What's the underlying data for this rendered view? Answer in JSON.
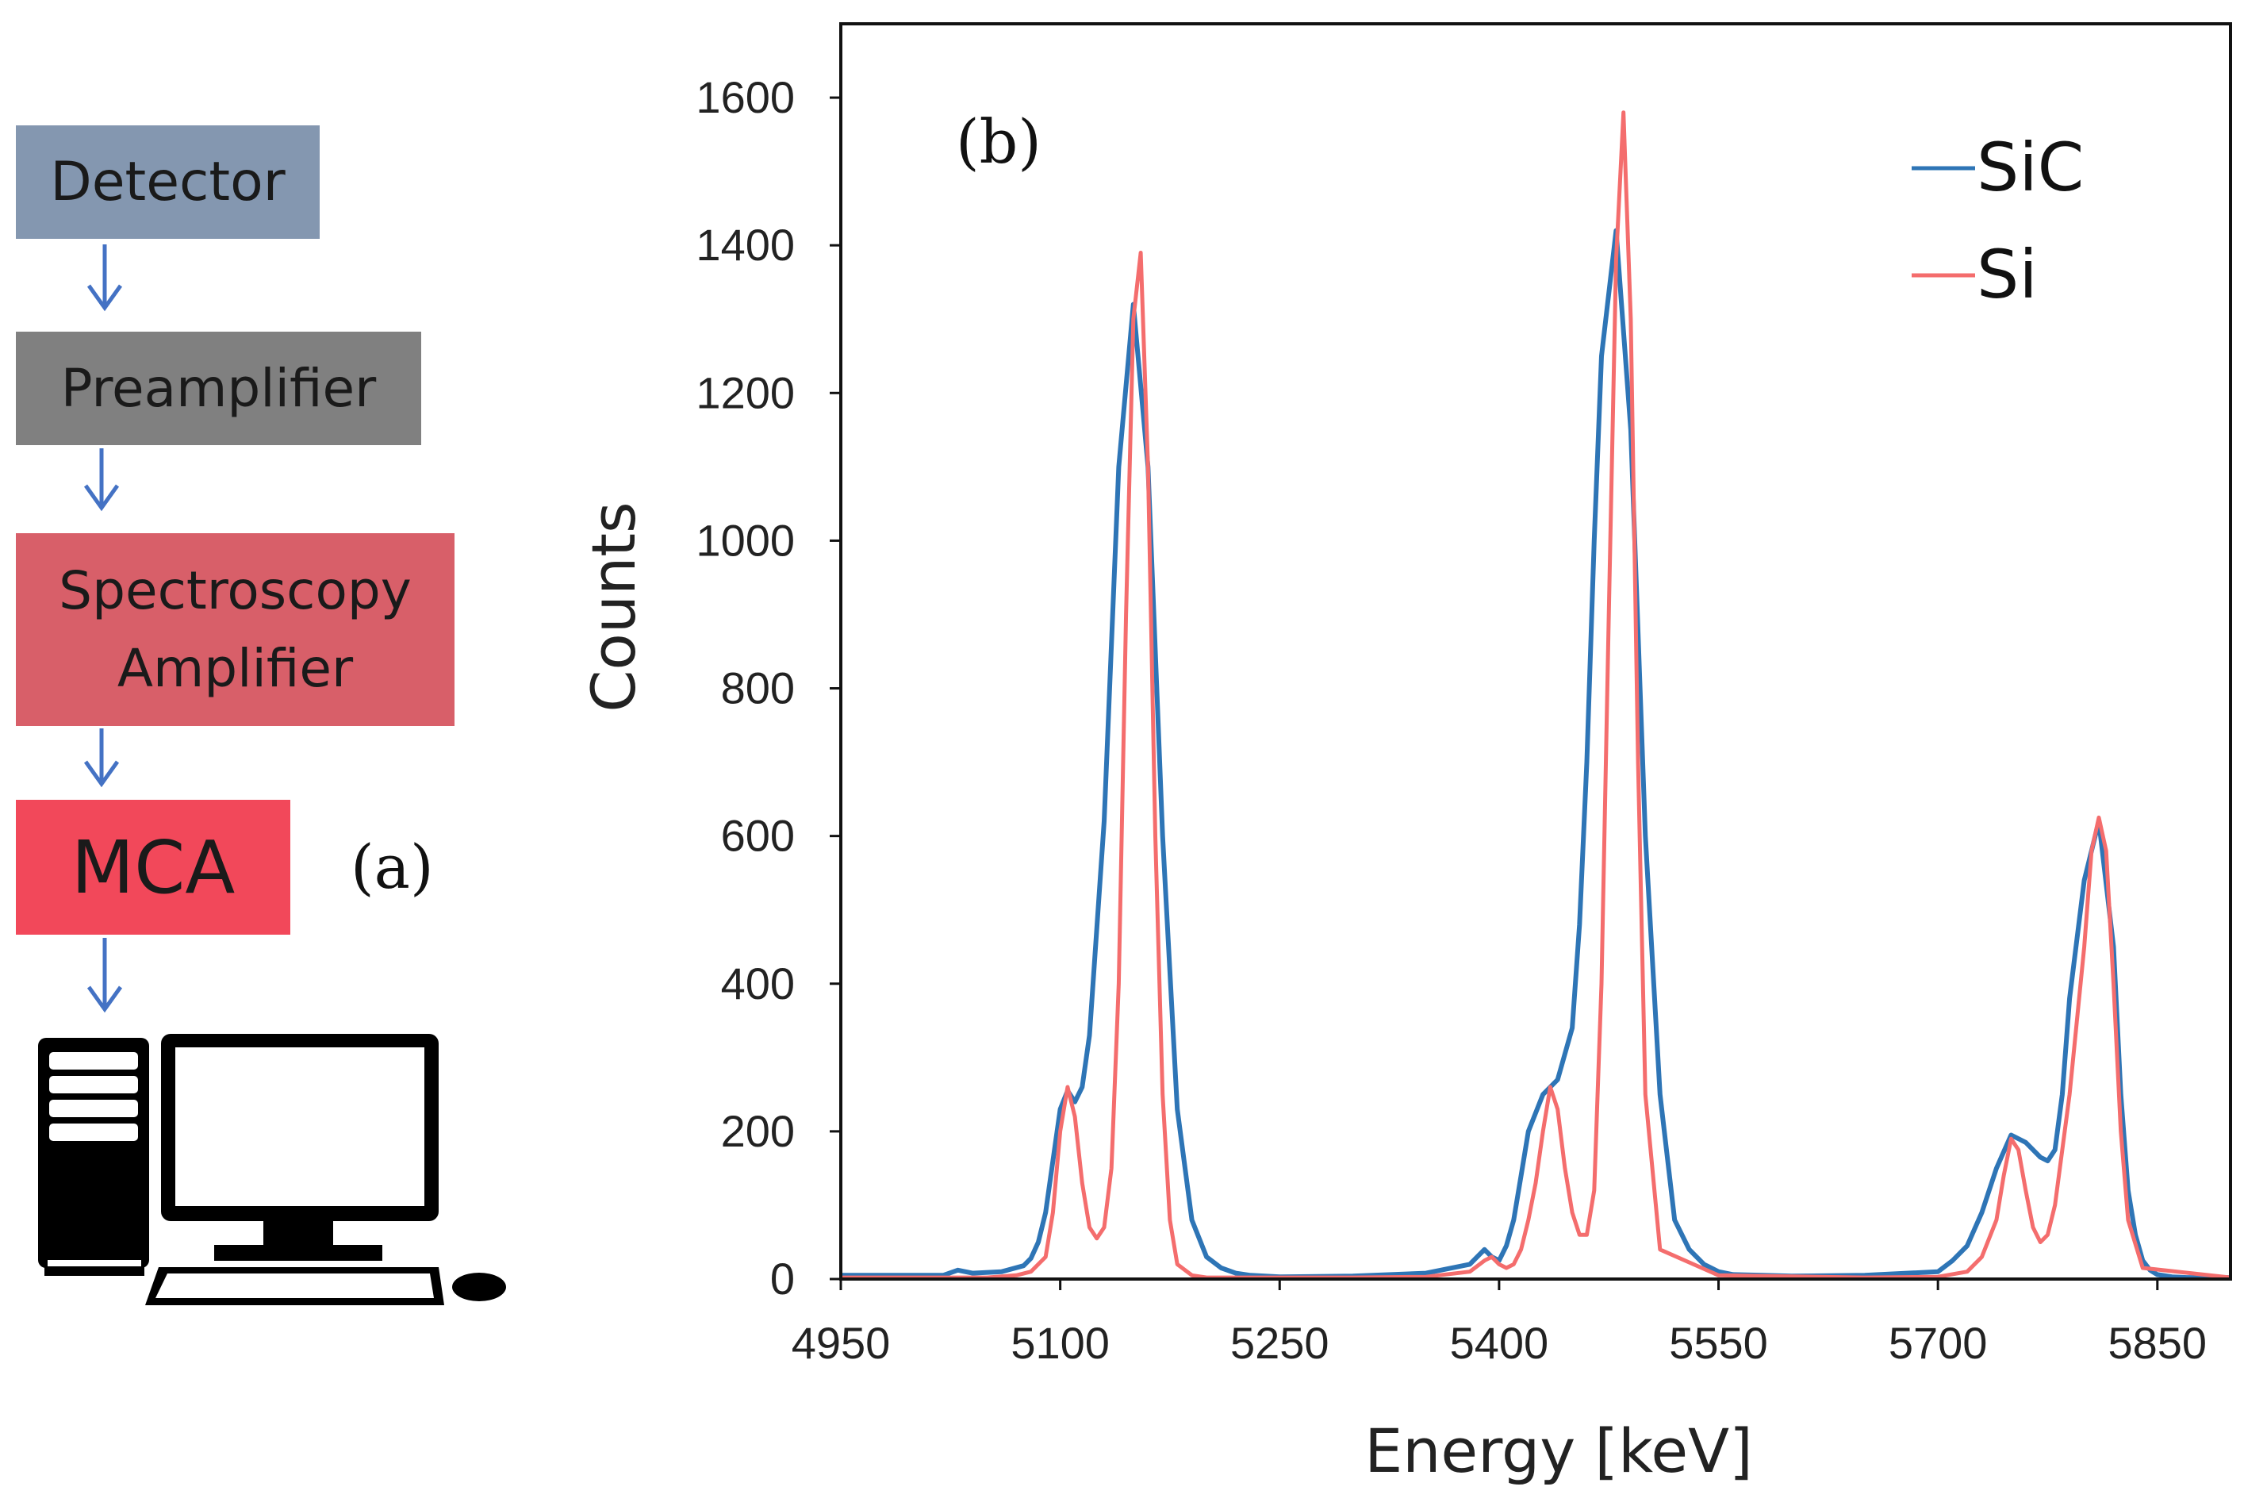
{
  "flowchart": {
    "detector": {
      "label": "Detector",
      "color": "#8497B0"
    },
    "preamplifier": {
      "label": "Preamplifier",
      "color": "#808080"
    },
    "spectroscopy_amplifier": {
      "line1": "Spectroscopy",
      "line2": "Amplifier",
      "color": "#D85F69"
    },
    "mca": {
      "label": "MCA",
      "color": "#F2485A"
    },
    "arrow_color": "#4472C4",
    "panel_label": "(a)",
    "computer_icon": "desktop-computer-icon"
  },
  "chart_data": {
    "type": "line",
    "panel_label": "(b)",
    "xlabel": "Energy  [keV]",
    "ylabel": "Counts",
    "xlim": [
      4950,
      5900
    ],
    "ylim": [
      0,
      1700
    ],
    "xticks": [
      4950,
      5100,
      5250,
      5400,
      5550,
      5700,
      5850
    ],
    "yticks": [
      0,
      200,
      400,
      600,
      800,
      1000,
      1200,
      1400,
      1600
    ],
    "legend_position": "top-right",
    "series": [
      {
        "name": "SiC",
        "color": "#2E75B6",
        "x": [
          4950,
          4980,
          5000,
          5020,
          5030,
          5040,
          5060,
          5075,
          5080,
          5085,
          5090,
          5095,
          5100,
          5105,
          5110,
          5115,
          5120,
          5130,
          5140,
          5150,
          5160,
          5170,
          5180,
          5190,
          5200,
          5210,
          5220,
          5230,
          5250,
          5300,
          5350,
          5380,
          5390,
          5395,
          5400,
          5405,
          5410,
          5415,
          5420,
          5430,
          5440,
          5450,
          5455,
          5460,
          5465,
          5470,
          5480,
          5490,
          5500,
          5510,
          5520,
          5530,
          5540,
          5550,
          5560,
          5580,
          5600,
          5650,
          5700,
          5710,
          5720,
          5730,
          5740,
          5750,
          5760,
          5770,
          5775,
          5780,
          5785,
          5790,
          5800,
          5810,
          5820,
          5825,
          5830,
          5835,
          5840,
          5845,
          5850,
          5860,
          5870,
          5900
        ],
        "values": [
          5,
          5,
          5,
          5,
          12,
          8,
          10,
          18,
          28,
          50,
          90,
          160,
          230,
          255,
          240,
          260,
          330,
          620,
          1100,
          1320,
          1100,
          600,
          230,
          80,
          30,
          15,
          8,
          5,
          3,
          4,
          8,
          20,
          40,
          30,
          25,
          45,
          80,
          140,
          200,
          250,
          270,
          340,
          480,
          700,
          1000,
          1250,
          1420,
          1150,
          600,
          250,
          80,
          40,
          20,
          10,
          6,
          5,
          4,
          5,
          10,
          25,
          45,
          90,
          150,
          195,
          185,
          165,
          160,
          175,
          250,
          380,
          540,
          620,
          450,
          250,
          120,
          60,
          25,
          12,
          6,
          3,
          2,
          2
        ]
      },
      {
        "name": "Si",
        "color": "#F46D6D",
        "x": [
          4950,
          5000,
          5050,
          5070,
          5080,
          5090,
          5095,
          5100,
          5105,
          5110,
          5115,
          5120,
          5125,
          5130,
          5135,
          5140,
          5145,
          5150,
          5155,
          5160,
          5165,
          5170,
          5175,
          5180,
          5190,
          5200,
          5250,
          5300,
          5350,
          5380,
          5390,
          5395,
          5400,
          5405,
          5410,
          5415,
          5420,
          5425,
          5430,
          5435,
          5440,
          5445,
          5450,
          5455,
          5460,
          5465,
          5470,
          5475,
          5480,
          5485,
          5490,
          5495,
          5500,
          5510,
          5550,
          5650,
          5700,
          5720,
          5730,
          5740,
          5745,
          5750,
          5755,
          5760,
          5765,
          5770,
          5775,
          5780,
          5790,
          5800,
          5805,
          5810,
          5815,
          5820,
          5825,
          5830,
          5840,
          5900
        ],
        "values": [
          2,
          2,
          2,
          5,
          10,
          30,
          90,
          200,
          260,
          220,
          130,
          70,
          55,
          70,
          150,
          400,
          900,
          1300,
          1390,
          1100,
          600,
          250,
          80,
          20,
          5,
          2,
          2,
          2,
          3,
          10,
          25,
          30,
          20,
          15,
          20,
          40,
          80,
          130,
          200,
          260,
          230,
          150,
          90,
          60,
          60,
          120,
          400,
          900,
          1380,
          1580,
          1300,
          700,
          250,
          40,
          5,
          2,
          3,
          10,
          30,
          80,
          140,
          190,
          175,
          120,
          70,
          50,
          60,
          100,
          250,
          450,
          580,
          625,
          580,
          400,
          200,
          80,
          15,
          2
        ]
      }
    ]
  }
}
